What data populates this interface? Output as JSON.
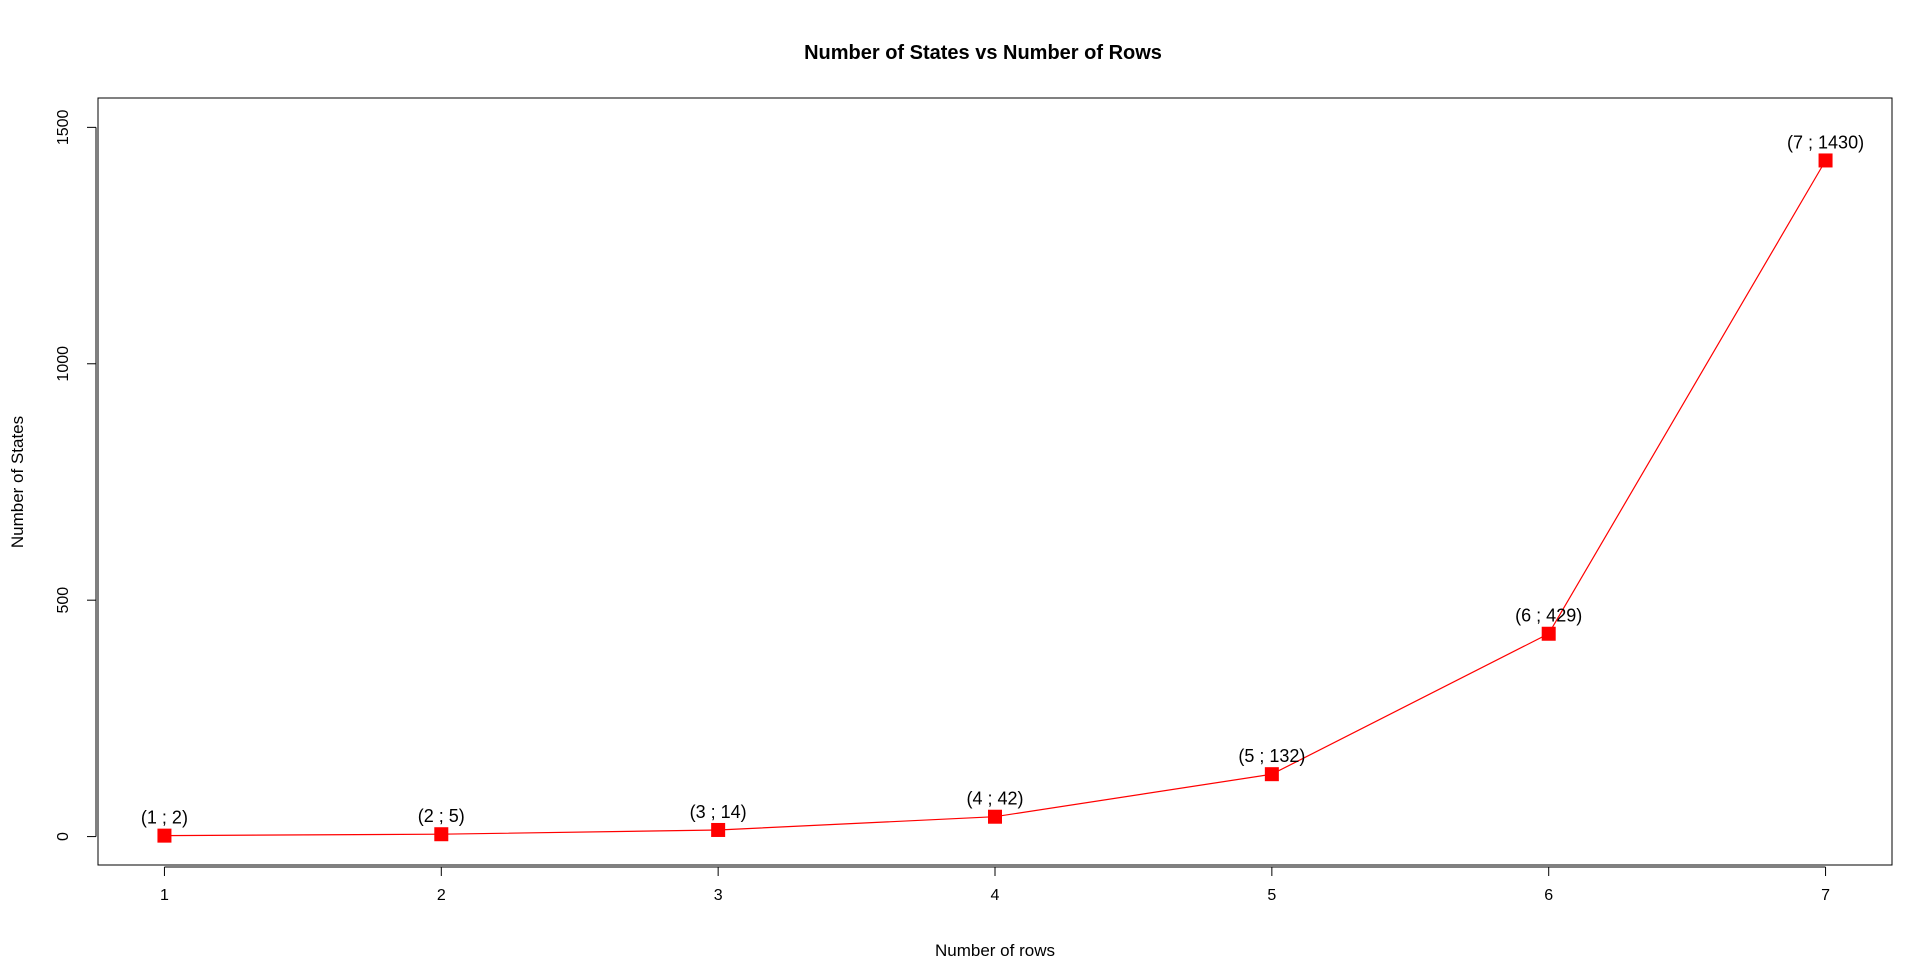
{
  "chart_data": {
    "type": "line",
    "title": "Number of States vs Number of Rows",
    "xlabel": "Number of rows",
    "ylabel": "Number of States",
    "x": [
      1,
      2,
      3,
      4,
      5,
      6,
      7
    ],
    "series": [
      {
        "values": [
          2,
          5,
          14,
          42,
          132,
          429,
          1430
        ],
        "color": "#ff0000",
        "marker": "square"
      }
    ],
    "point_labels": [
      "(1 ; 2)",
      "(2 ; 5)",
      "(3 ; 14)",
      "(4 ; 42)",
      "(5 ; 132)",
      "(6 ; 429)",
      "(7 ; 1430)"
    ],
    "xticks": [
      1,
      2,
      3,
      4,
      5,
      6,
      7
    ],
    "yticks": [
      0,
      500,
      1000,
      1500
    ],
    "xlim": [
      0.76,
      7.24
    ],
    "ylim": [
      -60.1,
      1562.1
    ],
    "grid": false,
    "legend": "none"
  }
}
